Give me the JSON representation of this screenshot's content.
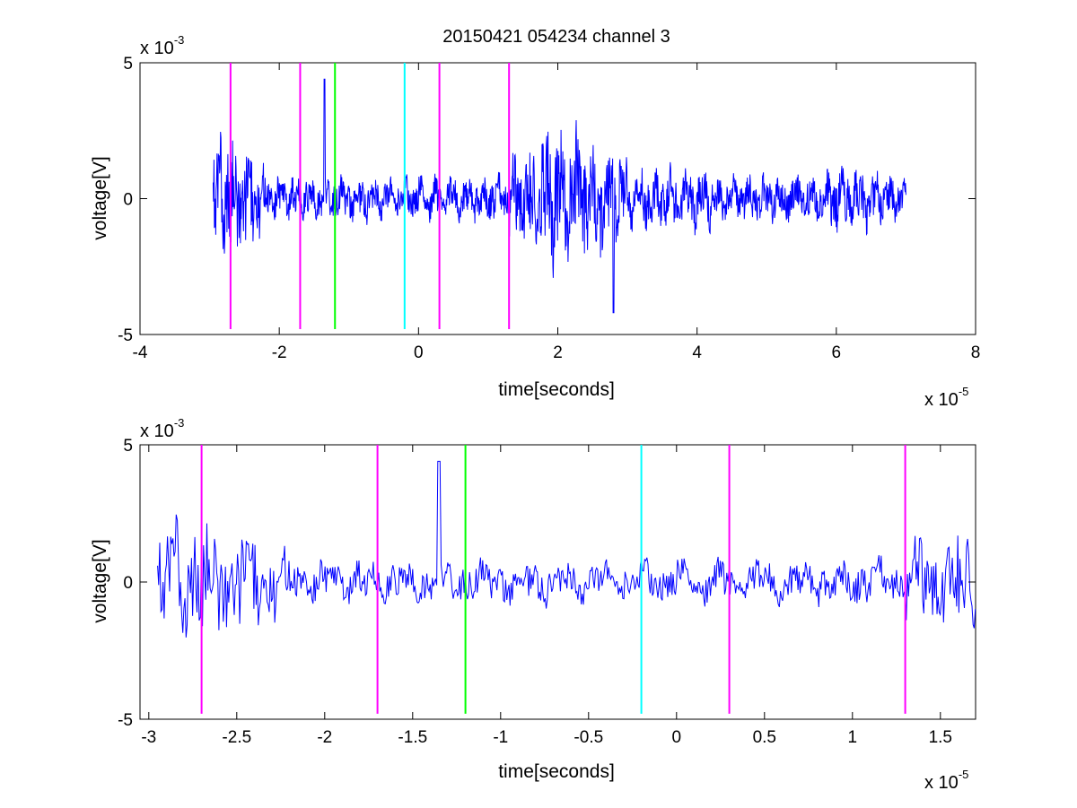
{
  "title": "20150421 054234 channel 3",
  "colors": {
    "signal": "#0000ff",
    "magenta": "#ff00ff",
    "green": "#00ff00",
    "cyan": "#00ffff"
  },
  "chart_data": [
    {
      "type": "line",
      "xlabel": "time[seconds]",
      "ylabel": "voltage[V]",
      "x_multiplier": {
        "base": "x 10",
        "exponent": "-5"
      },
      "y_multiplier": {
        "base": "x 10",
        "exponent": "-3"
      },
      "xlim": [
        -4,
        8
      ],
      "ylim": [
        -5,
        5
      ],
      "xticks": [
        -4,
        -2,
        0,
        2,
        4,
        6,
        8
      ],
      "yticks": [
        -5,
        0,
        5
      ],
      "xtick_labels": [
        "-4",
        "-2",
        "0",
        "2",
        "4",
        "6",
        "8"
      ],
      "ytick_labels": [
        "-5",
        "0",
        "5"
      ],
      "signal_x_range": [
        -2.95,
        7.0
      ],
      "markers": [
        {
          "x": -2.7,
          "color": "magenta"
        },
        {
          "x": -1.7,
          "color": "magenta"
        },
        {
          "x": -1.2,
          "color": "green"
        },
        {
          "x": -0.2,
          "color": "cyan"
        },
        {
          "x": 0.3,
          "color": "magenta"
        },
        {
          "x": 1.3,
          "color": "magenta"
        }
      ],
      "marker_ylim": [
        -4.8,
        5
      ]
    },
    {
      "type": "line",
      "xlabel": "time[seconds]",
      "ylabel": "voltage[V]",
      "x_multiplier": {
        "base": "x 10",
        "exponent": "-5"
      },
      "y_multiplier": {
        "base": "x 10",
        "exponent": "-3"
      },
      "xlim": [
        -3.05,
        1.7
      ],
      "ylim": [
        -5,
        5
      ],
      "xticks": [
        -3,
        -2.5,
        -2,
        -1.5,
        -1,
        -0.5,
        0,
        0.5,
        1,
        1.5
      ],
      "yticks": [
        -5,
        0,
        5
      ],
      "xtick_labels": [
        "-3",
        "-2.5",
        "-2",
        "-1.5",
        "-1",
        "-0.5",
        "0",
        "0.5",
        "1",
        "1.5"
      ],
      "ytick_labels": [
        "-5",
        "0",
        "5"
      ],
      "signal_x_range": [
        -2.95,
        1.7
      ],
      "markers": [
        {
          "x": -2.7,
          "color": "magenta"
        },
        {
          "x": -1.7,
          "color": "magenta"
        },
        {
          "x": -1.2,
          "color": "green"
        },
        {
          "x": -0.2,
          "color": "cyan"
        },
        {
          "x": 0.3,
          "color": "magenta"
        },
        {
          "x": 1.3,
          "color": "magenta"
        }
      ],
      "marker_ylim": [
        -4.8,
        5
      ]
    }
  ]
}
